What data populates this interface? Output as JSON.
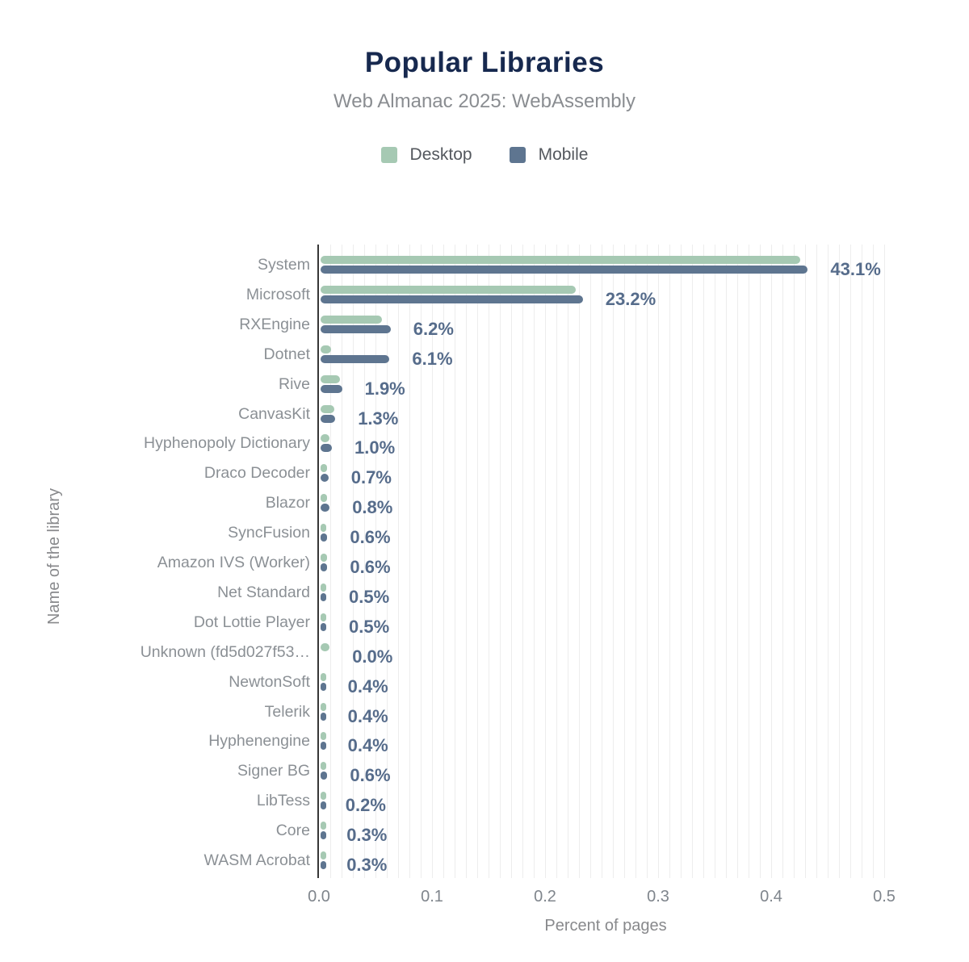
{
  "header": {
    "title": "Popular Libraries",
    "subtitle": "Web Almanac 2025: WebAssembly"
  },
  "legend": [
    {
      "label": "Desktop",
      "color": "#a6c9b3"
    },
    {
      "label": "Mobile",
      "color": "#5e7590"
    }
  ],
  "axes": {
    "xlabel": "Percent of pages",
    "ylabel": "Name of the library",
    "xtick_labels": [
      "0.0",
      "0.1",
      "0.2",
      "0.3",
      "0.4",
      "0.5"
    ]
  },
  "colors": {
    "title": "#17294f",
    "subtitle": "#8a8d91",
    "desktop_bar": "#a6c9b3",
    "mobile_bar": "#5e7590",
    "value_label": "#566c8b",
    "category_label": "#8b9095",
    "gridline": "#ededed",
    "axis_line": "#373737"
  },
  "chart_data": {
    "type": "bar",
    "orientation": "horizontal",
    "title": "Popular Libraries",
    "subtitle": "Web Almanac 2025: WebAssembly",
    "xlabel": "Percent of pages",
    "ylabel": "Name of the library",
    "xlim": [
      0,
      0.5
    ],
    "xticks": [
      0.0,
      0.1,
      0.2,
      0.3,
      0.4,
      0.5
    ],
    "grid": "vertical minor gridlines every 0.01",
    "legend_position": "top-center",
    "categories": [
      "System",
      "Microsoft",
      "RXEngine",
      "Dotnet",
      "Rive",
      "CanvasKit",
      "Hyphenopoly Dictionary",
      "Draco Decoder",
      "Blazor",
      "SyncFusion",
      "Amazon IVS (Worker)",
      "Net Standard",
      "Dot Lottie Player",
      "Unknown (fd5d027f53…",
      "NewtonSoft",
      "Telerik",
      "Hyphenengine",
      "Signer BG",
      "LibTess",
      "Core",
      "WASM Acrobat"
    ],
    "series": [
      {
        "name": "Desktop",
        "values": [
          0.424,
          0.226,
          0.054,
          0.009,
          0.017,
          0.012,
          0.008,
          0.006,
          0.006,
          0.005,
          0.006,
          0.004,
          0.005,
          0.008,
          0.004,
          0.004,
          0.003,
          0.002,
          0.002,
          0.002,
          0.003
        ]
      },
      {
        "name": "Mobile",
        "values": [
          0.431,
          0.232,
          0.062,
          0.061,
          0.019,
          0.013,
          0.01,
          0.007,
          0.008,
          0.006,
          0.006,
          0.005,
          0.005,
          0.0,
          0.004,
          0.004,
          0.004,
          0.006,
          0.002,
          0.003,
          0.003
        ]
      }
    ],
    "value_labels": [
      "43.1%",
      "23.2%",
      "6.2%",
      "6.1%",
      "1.9%",
      "1.3%",
      "1.0%",
      "0.7%",
      "0.8%",
      "0.6%",
      "0.6%",
      "0.5%",
      "0.5%",
      "0.0%",
      "0.4%",
      "0.4%",
      "0.4%",
      "0.6%",
      "0.2%",
      "0.3%",
      "0.3%"
    ]
  }
}
